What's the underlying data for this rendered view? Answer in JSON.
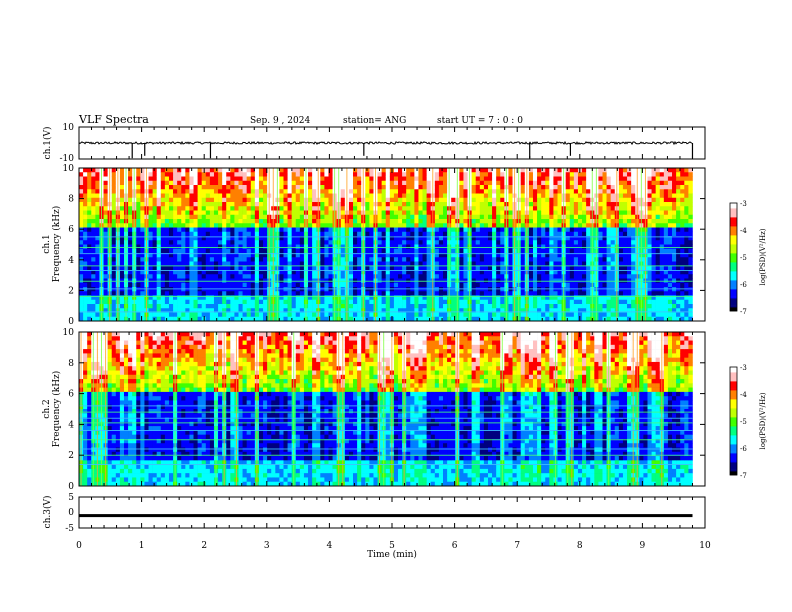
{
  "header": {
    "title": "VLF Spectra",
    "date": "Sep. 9 , 2024",
    "station": "station= ANG",
    "start": "start UT = 7 : 0 : 0"
  },
  "chart_data": [
    {
      "type": "line",
      "name": "ch1-waveform",
      "ylabel": "ch.1(V)",
      "ylim": [
        -10,
        10
      ],
      "yticks": [
        "10",
        "-10"
      ],
      "xlim": [
        0,
        10
      ],
      "baseline": 0,
      "spikes_min": [
        0.85,
        1.05,
        2.1,
        4.55,
        7.2,
        7.85,
        9.8
      ]
    },
    {
      "type": "heatmap",
      "name": "ch1-spectrogram",
      "ylabel": "ch.1 Frequency (kHz)",
      "ylim": [
        0,
        10
      ],
      "yticks": [
        "0",
        "2",
        "4",
        "6",
        "8",
        "10"
      ],
      "xlim": [
        0,
        10
      ],
      "data_end_min": 9.8,
      "horizontal_lines_khz": [
        0.6,
        1.6,
        2.1,
        2.6,
        3.3,
        3.6,
        4.4,
        4.8,
        5.5
      ]
    },
    {
      "type": "heatmap",
      "name": "ch2-spectrogram",
      "ylabel": "ch.2 Frequency (kHz)",
      "ylim": [
        0,
        10
      ],
      "yticks": [
        "0",
        "2",
        "4",
        "6",
        "8",
        "10"
      ],
      "xlim": [
        0,
        10
      ],
      "data_end_min": 9.8,
      "horizontal_lines_khz": [
        1.4,
        2.0,
        2.4,
        3.0,
        3.6,
        4.1,
        4.4,
        4.8,
        5.2
      ]
    },
    {
      "type": "line",
      "name": "ch3-waveform",
      "ylabel": "ch.3(V)",
      "ylim": [
        -5,
        5
      ],
      "yticks": [
        "5",
        "0",
        "-5"
      ],
      "xlim": [
        0,
        10
      ],
      "level": -1,
      "xlabel": "Time (min)",
      "xticks": [
        "0",
        "1",
        "2",
        "3",
        "4",
        "5",
        "6",
        "7",
        "8",
        "9",
        "10"
      ]
    }
  ],
  "colorbar": {
    "label": "log(PSD)(V²/Hz)",
    "range": [
      -7,
      -3
    ],
    "ticks": [
      "-3",
      "-4",
      "-5",
      "-6",
      "-7"
    ],
    "colors": [
      "#000000",
      "#000080",
      "#0000ff",
      "#0080ff",
      "#00ffff",
      "#00ff80",
      "#40ff00",
      "#c0ff00",
      "#ffff00",
      "#ff8000",
      "#ff0000",
      "#ffc0c0",
      "#ffffff"
    ]
  }
}
